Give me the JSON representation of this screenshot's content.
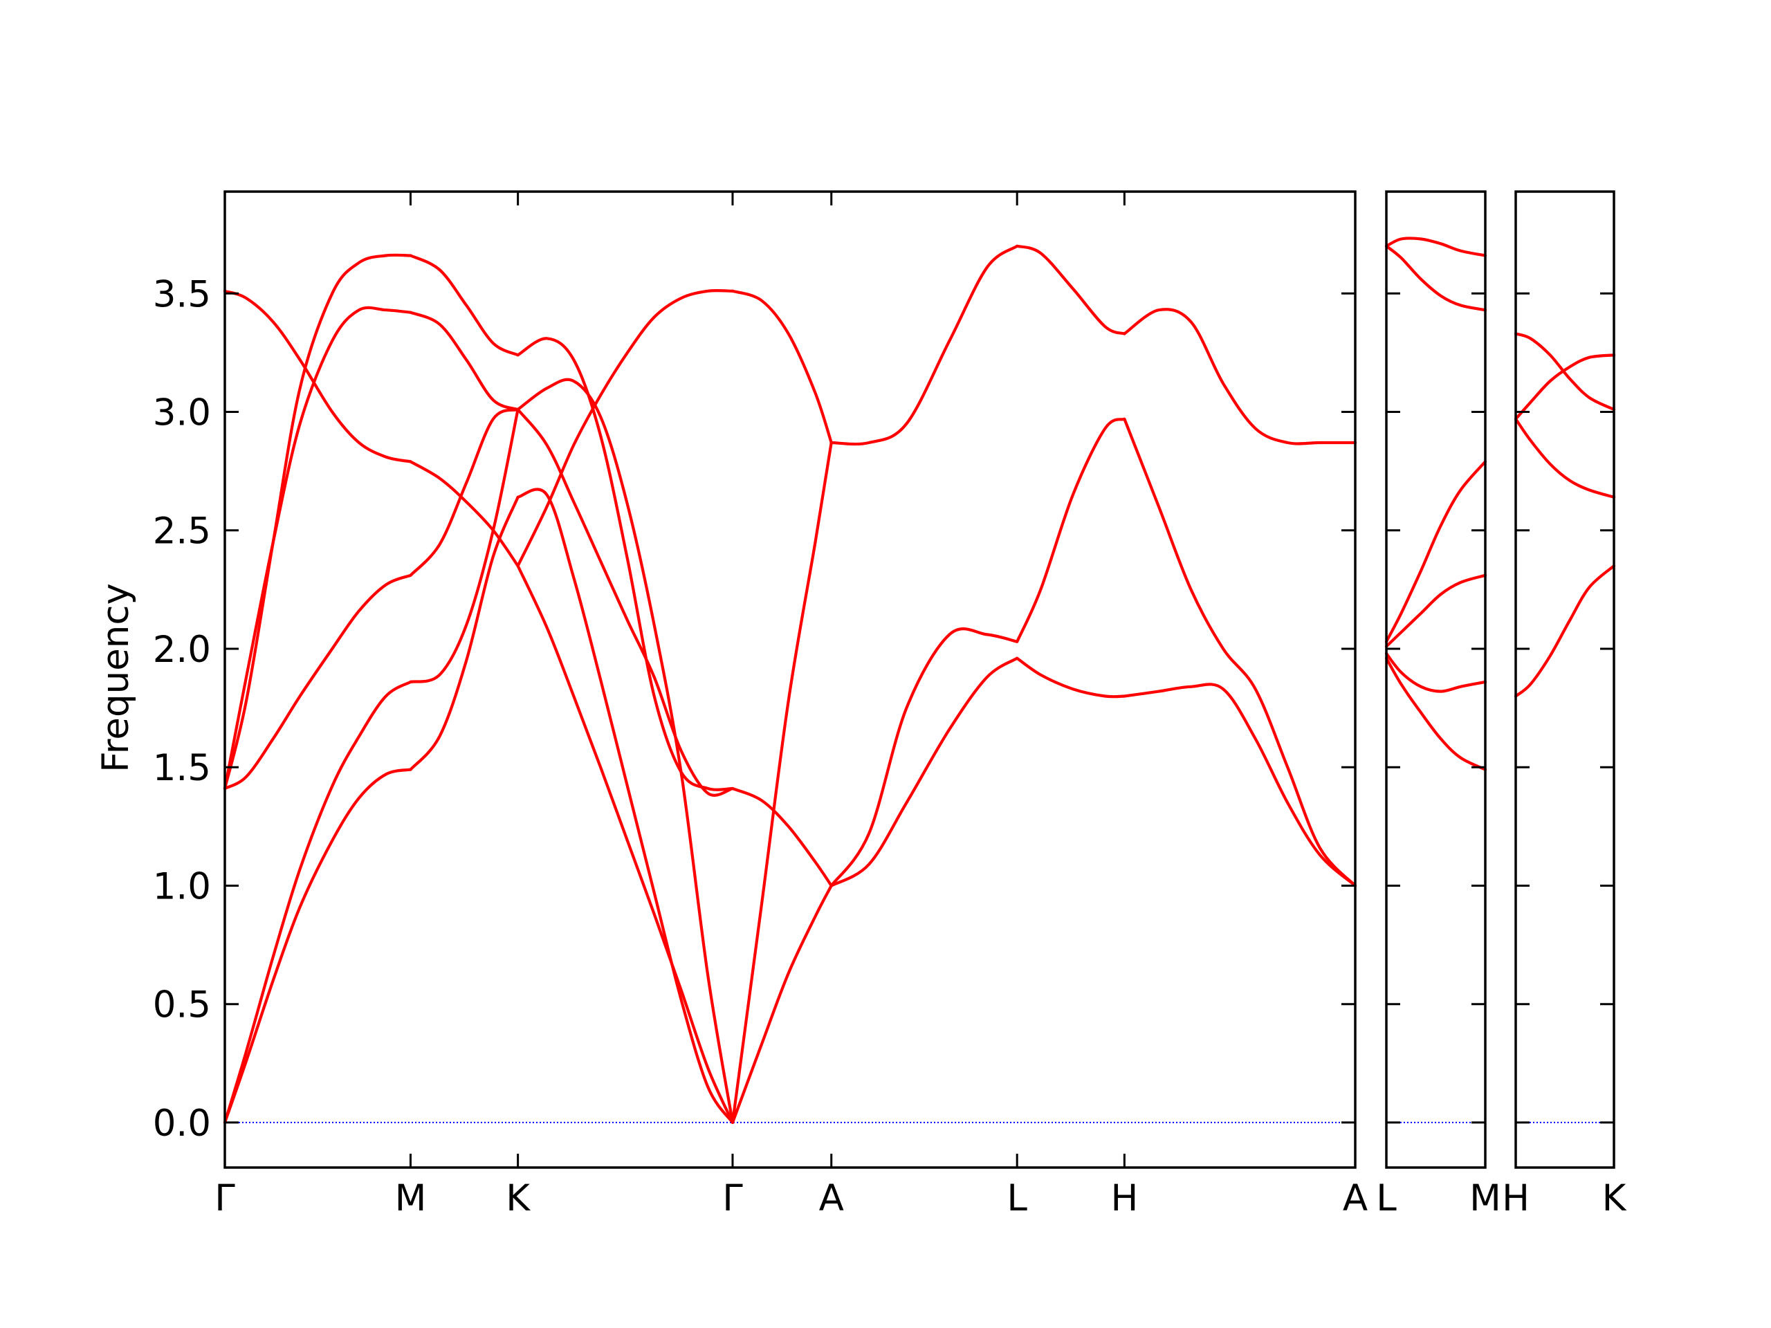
{
  "colors": {
    "band": "#ff0000",
    "zero_line": "#0000ff",
    "axes": "#000000",
    "background": "#ffffff"
  },
  "chart_data": {
    "type": "line",
    "title": "",
    "xlabel": "",
    "ylabel": "Frequency",
    "ylim": [
      -0.19,
      3.93
    ],
    "yticks": [
      0.0,
      0.5,
      1.0,
      1.5,
      2.0,
      2.5,
      3.0,
      3.5
    ],
    "ytick_labels": [
      "0.0",
      "0.5",
      "1.0",
      "1.5",
      "2.0",
      "2.5",
      "3.0",
      "3.5"
    ],
    "grid": false,
    "legend": "none",
    "zero_line": {
      "y": 0.0,
      "style": "dotted"
    },
    "panels": [
      {
        "x_range": [
          0,
          10.53
        ],
        "kpoints": [
          {
            "label": "Γ",
            "x": 0.0
          },
          {
            "label": "M",
            "x": 1.73
          },
          {
            "label": "K",
            "x": 2.73
          },
          {
            "label": "Γ",
            "x": 4.73
          },
          {
            "label": "A",
            "x": 5.65
          },
          {
            "label": "L",
            "x": 7.38
          },
          {
            "label": "H",
            "x": 8.38
          },
          {
            "label": "A",
            "x": 10.53
          }
        ],
        "segments": [
          {
            "x": [
              0.0,
              0.2,
              0.45,
              0.7,
              1.0,
              1.25,
              1.5,
              1.73
            ],
            "series": [
              {
                "values": [
                  0.0,
                  0.26,
                  0.6,
                  0.91,
                  1.19,
                  1.37,
                  1.47,
                  1.49
                ]
              },
              {
                "values": [
                  0.0,
                  0.3,
                  0.7,
                  1.07,
                  1.42,
                  1.63,
                  1.8,
                  1.86
                ]
              },
              {
                "values": [
                  1.41,
                  1.46,
                  1.62,
                  1.8,
                  2.0,
                  2.16,
                  2.27,
                  2.31
                ]
              },
              {
                "values": [
                  1.41,
                  1.88,
                  2.45,
                  2.95,
                  3.3,
                  3.43,
                  3.43,
                  3.42
                ]
              },
              {
                "values": [
                  1.41,
                  1.78,
                  2.45,
                  3.1,
                  3.5,
                  3.63,
                  3.66,
                  3.66
                ]
              },
              {
                "values": [
                  3.51,
                  3.48,
                  3.38,
                  3.22,
                  3.0,
                  2.87,
                  2.81,
                  2.79
                ]
              }
            ]
          },
          {
            "x": [
              1.73,
              2.0,
              2.25,
              2.5,
              2.73
            ],
            "series": [
              {
                "values": [
                  1.49,
                  1.63,
                  1.95,
                  2.39,
                  2.64
                ]
              },
              {
                "values": [
                  1.86,
                  1.89,
                  2.1,
                  2.5,
                  3.01
                ]
              },
              {
                "values": [
                  2.31,
                  2.44,
                  2.7,
                  2.97,
                  3.01
                ]
              },
              {
                "values": [
                  3.42,
                  3.37,
                  3.22,
                  3.05,
                  3.01
                ]
              },
              {
                "values": [
                  3.66,
                  3.6,
                  3.45,
                  3.29,
                  3.24
                ]
              },
              {
                "values": [
                  2.79,
                  2.72,
                  2.62,
                  2.5,
                  2.35
                ]
              }
            ]
          },
          {
            "x": [
              2.73,
              3.0,
              3.25,
              3.5,
              3.75,
              4.0,
              4.25,
              4.5,
              4.73
            ],
            "series": [
              {
                "values": [
                  2.64,
                  2.65,
                  2.3,
                  1.87,
                  1.42,
                  0.97,
                  0.52,
                  0.15,
                  0.0
                ]
              },
              {
                "values": [
                  2.35,
                  2.09,
                  1.8,
                  1.5,
                  1.19,
                  0.88,
                  0.56,
                  0.23,
                  0.0
                ]
              },
              {
                "values": [
                  3.01,
                  3.1,
                  3.13,
                  2.98,
                  2.61,
                  2.1,
                  1.48,
                  0.62,
                  0.0
                ]
              },
              {
                "values": [
                  3.01,
                  2.86,
                  2.62,
                  2.37,
                  2.12,
                  1.88,
                  1.57,
                  1.39,
                  1.41
                ]
              },
              {
                "values": [
                  3.24,
                  3.31,
                  3.22,
                  2.9,
                  2.38,
                  1.8,
                  1.48,
                  1.41,
                  1.41
                ]
              },
              {
                "values": [
                  2.35,
                  2.6,
                  2.86,
                  3.07,
                  3.25,
                  3.4,
                  3.48,
                  3.51,
                  3.51
                ]
              }
            ]
          },
          {
            "x": [
              4.73,
              5.0,
              5.25,
              5.5,
              5.65
            ],
            "series": [
              {
                "values": [
                  0.0,
                  0.33,
                  0.63,
                  0.87,
                  1.0
                ]
              },
              {
                "values": [
                  0.0,
                  0.92,
                  1.78,
                  2.45,
                  2.87
                ]
              },
              {
                "values": [
                  1.41,
                  1.36,
                  1.25,
                  1.1,
                  1.0
                ]
              },
              {
                "values": [
                  3.51,
                  3.47,
                  3.33,
                  3.08,
                  2.87
                ]
              }
            ]
          },
          {
            "x": [
              5.65,
              6.0,
              6.35,
              6.75,
              7.1,
              7.38
            ],
            "series": [
              {
                "values": [
                  1.0,
                  1.09,
                  1.35,
                  1.66,
                  1.88,
                  1.96
                ]
              },
              {
                "values": [
                  1.0,
                  1.22,
                  1.75,
                  2.06,
                  2.06,
                  2.03
                ]
              },
              {
                "values": [
                  2.87,
                  2.87,
                  2.95,
                  3.3,
                  3.61,
                  3.7
                ]
              }
            ]
          },
          {
            "x": [
              7.38,
              7.6,
              7.9,
              8.2,
              8.38
            ],
            "series": [
              {
                "values": [
                  1.96,
                  1.89,
                  1.83,
                  1.8,
                  1.8
                ]
              },
              {
                "values": [
                  2.03,
                  2.25,
                  2.65,
                  2.93,
                  2.97
                ]
              },
              {
                "values": [
                  3.7,
                  3.67,
                  3.52,
                  3.36,
                  3.33
                ]
              }
            ]
          },
          {
            "x": [
              8.38,
              8.7,
              9.0,
              9.3,
              9.6,
              9.9,
              10.2,
              10.53
            ],
            "series": [
              {
                "values": [
                  1.8,
                  1.82,
                  1.84,
                  1.83,
                  1.62,
                  1.35,
                  1.13,
                  1.0
                ]
              },
              {
                "values": [
                  2.97,
                  2.6,
                  2.25,
                  2.0,
                  1.83,
                  1.5,
                  1.16,
                  1.0
                ]
              },
              {
                "values": [
                  3.33,
                  3.43,
                  3.38,
                  3.12,
                  2.93,
                  2.87,
                  2.87,
                  2.87
                ]
              }
            ]
          }
        ]
      },
      {
        "x_range": [
          0,
          1.0
        ],
        "kpoints": [
          {
            "label": "L",
            "x": 0.0
          },
          {
            "label": "M",
            "x": 1.0
          }
        ],
        "segments": [
          {
            "x": [
              0.0,
              0.15,
              0.35,
              0.55,
              0.75,
              1.0
            ],
            "series": [
              {
                "values": [
                  1.96,
                  1.85,
                  1.73,
                  1.62,
                  1.54,
                  1.49
                ]
              },
              {
                "values": [
                  1.98,
                  1.9,
                  1.84,
                  1.82,
                  1.84,
                  1.86
                ]
              },
              {
                "values": [
                  2.01,
                  2.07,
                  2.15,
                  2.23,
                  2.28,
                  2.31
                ]
              },
              {
                "values": [
                  2.03,
                  2.15,
                  2.33,
                  2.52,
                  2.67,
                  2.79
                ]
              },
              {
                "values": [
                  3.7,
                  3.65,
                  3.56,
                  3.49,
                  3.45,
                  3.43
                ]
              },
              {
                "values": [
                  3.7,
                  3.73,
                  3.73,
                  3.71,
                  3.68,
                  3.66
                ]
              }
            ]
          }
        ]
      },
      {
        "x_range": [
          0,
          1.0
        ],
        "kpoints": [
          {
            "label": "H",
            "x": 0.0
          },
          {
            "label": "K",
            "x": 1.0
          }
        ],
        "segments": [
          {
            "x": [
              0.0,
              0.15,
              0.35,
              0.55,
              0.75,
              1.0
            ],
            "series": [
              {
                "values": [
                  1.8,
                  1.85,
                  1.97,
                  2.12,
                  2.26,
                  2.35
                ]
              },
              {
                "values": [
                  2.97,
                  2.88,
                  2.78,
                  2.71,
                  2.67,
                  2.64
                ]
              },
              {
                "values": [
                  2.97,
                  3.04,
                  3.13,
                  3.19,
                  3.23,
                  3.24
                ]
              },
              {
                "values": [
                  3.33,
                  3.31,
                  3.24,
                  3.14,
                  3.06,
                  3.01
                ]
              }
            ]
          }
        ]
      }
    ]
  }
}
